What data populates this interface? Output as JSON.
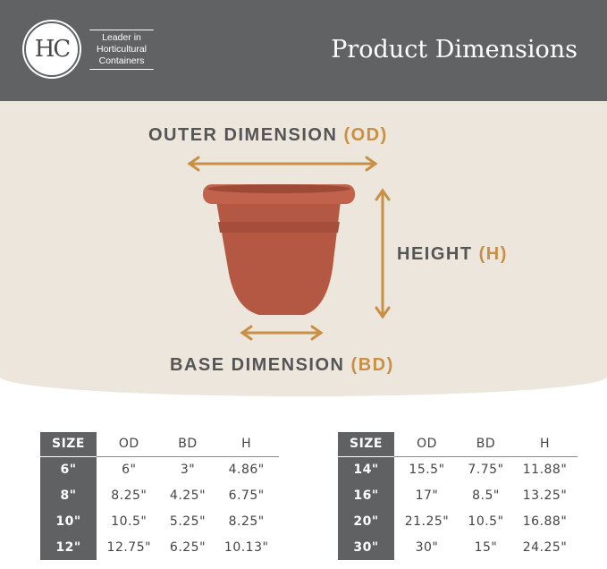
{
  "header": {
    "logo_text": "HC",
    "tagline": [
      "Leader in",
      "Horticultural",
      "Containers"
    ],
    "title": "Product Dimensions"
  },
  "diagram": {
    "outer": "OUTER DIMENSION",
    "outer_abbr": "(OD)",
    "height": "HEIGHT",
    "height_abbr": "(H)",
    "base": "BASE DIMENSION",
    "base_abbr": "(BD)",
    "colors": {
      "pot": "#b85a45",
      "arrow": "#c98f45"
    }
  },
  "tables": [
    {
      "headers": [
        "SIZE",
        "OD",
        "BD",
        "H"
      ],
      "rows": [
        [
          "6\"",
          "6\"",
          "3\"",
          "4.86\""
        ],
        [
          "8\"",
          "8.25\"",
          "4.25\"",
          "6.75\""
        ],
        [
          "10\"",
          "10.5\"",
          "5.25\"",
          "8.25\""
        ],
        [
          "12\"",
          "12.75\"",
          "6.25\"",
          "10.13\""
        ]
      ]
    },
    {
      "headers": [
        "SIZE",
        "OD",
        "BD",
        "H"
      ],
      "rows": [
        [
          "14\"",
          "15.5\"",
          "7.75\"",
          "11.88\""
        ],
        [
          "16\"",
          "17\"",
          "8.5\"",
          "13.25\""
        ],
        [
          "20\"",
          "21.25\"",
          "10.5\"",
          "16.88\""
        ],
        [
          "30\"",
          "30\"",
          "15\"",
          "24.25\""
        ]
      ]
    }
  ]
}
